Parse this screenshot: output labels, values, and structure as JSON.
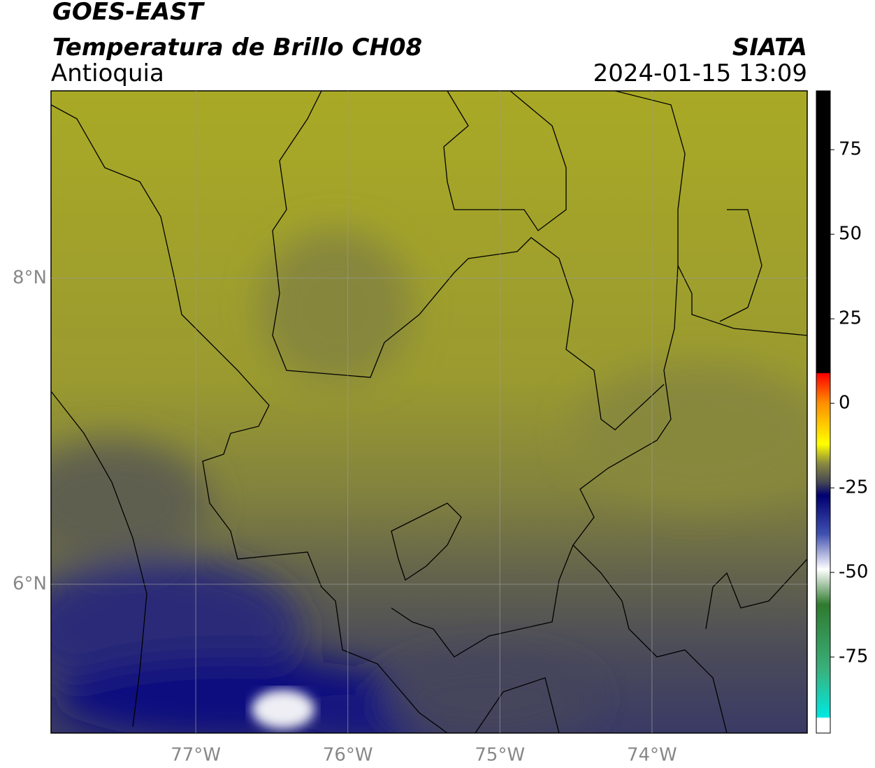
{
  "header": {
    "title": "GOES-EAST",
    "subtitle": "Temperatura de Brillo CH08",
    "region": "Antioquia",
    "source": "SIATA",
    "datetime": "2024-01-15 13:09"
  },
  "map": {
    "xlim": [
      -77.952,
      -72.979
    ],
    "ylim": [
      5.027,
      9.224
    ],
    "xticks": [
      {
        "value": -77,
        "label": "77°W"
      },
      {
        "value": -76,
        "label": "76°W"
      },
      {
        "value": -75,
        "label": "75°W"
      },
      {
        "value": -74,
        "label": "74°W"
      }
    ],
    "yticks": [
      {
        "value": 6,
        "label": "6°N"
      },
      {
        "value": 8,
        "label": "8°N"
      }
    ],
    "grid": true
  },
  "colorbar": {
    "lim": [
      -97.5,
      92.4
    ],
    "ticks": [
      75,
      50,
      25,
      0,
      -25,
      -50,
      -75
    ]
  }
}
